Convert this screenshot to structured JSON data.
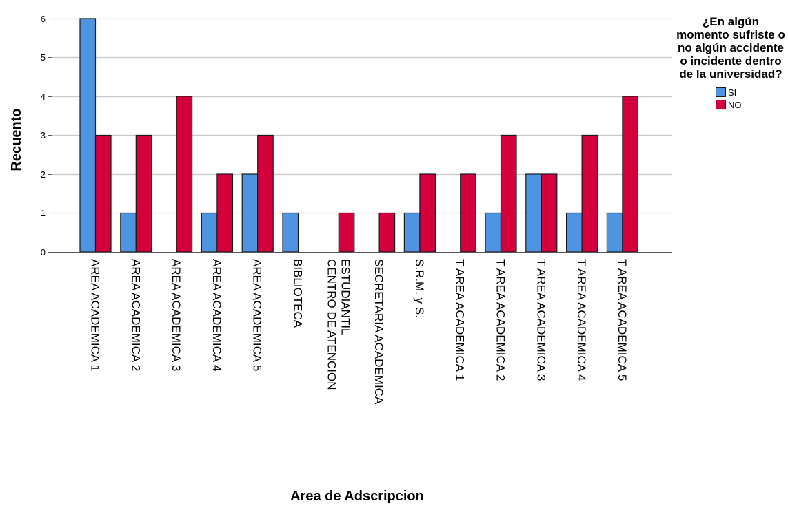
{
  "chart_data": {
    "type": "bar",
    "title": "",
    "xlabel": "Area de Adscripcion",
    "ylabel": "Recuento",
    "ylim": [
      0,
      6.3
    ],
    "yticks": [
      0,
      1,
      2,
      3,
      4,
      5,
      6
    ],
    "grid": true,
    "legend_position": "right",
    "legend_title": "¿En algún momento sufriste o no algún accidente o incidente dentro de la universidad?",
    "categories": [
      "AREA ACADEMICA 1",
      "AREA ACADEMICA 2",
      "AREA ACADEMICA 3",
      "AREA ACADEMICA 4",
      "AREA ACADEMICA 5",
      "BIBLIOTECA",
      "CENTRO DE ATENCION ESTUDIANTIL",
      "SECRETARIA ACADEMICA",
      "S.R.M. y S.",
      "T AREA ACADEMICA 1",
      "T AREA ACADEMICA 2",
      "T AREA ACADEMICA 3",
      "T AREA ACADEMICA 4",
      "T AREA ACADEMICA 5"
    ],
    "series": [
      {
        "name": "SI",
        "color": "#4f94e0",
        "values": [
          6,
          1,
          null,
          1,
          2,
          1,
          null,
          null,
          1,
          null,
          1,
          2,
          1,
          1
        ]
      },
      {
        "name": "NO",
        "color": "#d4003c",
        "values": [
          3,
          3,
          4,
          2,
          3,
          null,
          1,
          1,
          2,
          2,
          3,
          2,
          3,
          4
        ]
      }
    ]
  }
}
